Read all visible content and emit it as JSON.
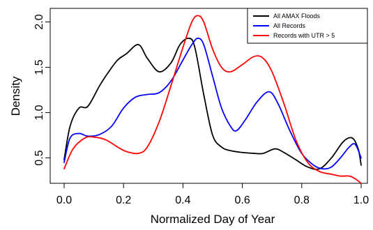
{
  "chart_data": {
    "type": "line",
    "title": "",
    "xlabel": "Normalized Day of Year",
    "ylabel": "Density",
    "xlim": [
      0.0,
      1.0
    ],
    "ylim": [
      0.22,
      2.15
    ],
    "xticks": [
      "0.0",
      "0.2",
      "0.4",
      "0.6",
      "0.8",
      "1.0"
    ],
    "yticks": [
      "0.5",
      "1.0",
      "1.5",
      "2.0"
    ],
    "legend_position": "top-right",
    "grid": false,
    "series": [
      {
        "name": "All AMAX Floods",
        "color": "#000000",
        "x": [
          0.0,
          0.02,
          0.05,
          0.08,
          0.12,
          0.15,
          0.18,
          0.21,
          0.25,
          0.28,
          0.32,
          0.36,
          0.39,
          0.42,
          0.44,
          0.47,
          0.5,
          0.53,
          0.56,
          0.6,
          0.64,
          0.67,
          0.71,
          0.74,
          0.78,
          0.82,
          0.86,
          0.9,
          0.94,
          0.97,
          0.99,
          1.0
        ],
        "y": [
          0.48,
          0.85,
          1.05,
          1.07,
          1.3,
          1.45,
          1.58,
          1.65,
          1.75,
          1.6,
          1.45,
          1.55,
          1.75,
          1.82,
          1.72,
          1.2,
          0.75,
          0.62,
          0.58,
          0.56,
          0.55,
          0.55,
          0.6,
          0.56,
          0.48,
          0.4,
          0.38,
          0.5,
          0.68,
          0.72,
          0.6,
          0.42
        ]
      },
      {
        "name": "All Records",
        "color": "#0000ff",
        "x": [
          0.0,
          0.02,
          0.05,
          0.08,
          0.12,
          0.16,
          0.2,
          0.24,
          0.28,
          0.32,
          0.36,
          0.4,
          0.43,
          0.45,
          0.47,
          0.5,
          0.53,
          0.56,
          0.58,
          0.61,
          0.65,
          0.69,
          0.72,
          0.76,
          0.8,
          0.84,
          0.87,
          0.9,
          0.93,
          0.96,
          0.98,
          1.0
        ],
        "y": [
          0.45,
          0.72,
          0.77,
          0.74,
          0.76,
          0.85,
          1.05,
          1.17,
          1.2,
          1.22,
          1.35,
          1.58,
          1.75,
          1.82,
          1.75,
          1.4,
          1.05,
          0.85,
          0.8,
          0.92,
          1.12,
          1.23,
          1.1,
          0.8,
          0.55,
          0.42,
          0.38,
          0.4,
          0.5,
          0.62,
          0.65,
          0.5
        ]
      },
      {
        "name": "Records with UTR > 5",
        "color": "#ff0000",
        "x": [
          0.0,
          0.03,
          0.07,
          0.1,
          0.14,
          0.18,
          0.21,
          0.25,
          0.28,
          0.32,
          0.36,
          0.4,
          0.43,
          0.45,
          0.47,
          0.5,
          0.53,
          0.56,
          0.6,
          0.64,
          0.67,
          0.7,
          0.74,
          0.78,
          0.82,
          0.86,
          0.9,
          0.93,
          0.96,
          0.98,
          1.0
        ],
        "y": [
          0.38,
          0.6,
          0.72,
          0.73,
          0.7,
          0.62,
          0.57,
          0.55,
          0.62,
          0.9,
          1.3,
          1.72,
          2.0,
          2.07,
          2.0,
          1.7,
          1.5,
          1.45,
          1.53,
          1.62,
          1.6,
          1.45,
          1.1,
          0.7,
          0.45,
          0.35,
          0.32,
          0.3,
          0.3,
          0.27,
          0.22
        ]
      }
    ]
  }
}
